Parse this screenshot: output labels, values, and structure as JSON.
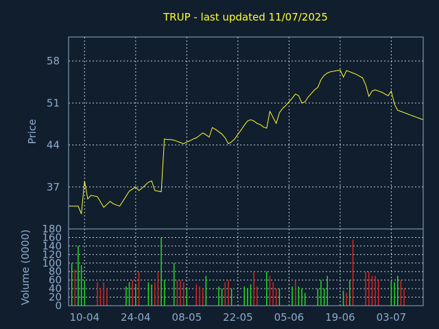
{
  "chart_data": [
    {
      "type": "line",
      "title": "TRUP - last updated 11/07/2025",
      "ylabel": "Price",
      "ylim": [
        30,
        62
      ],
      "yticks": [
        37,
        44,
        51,
        58
      ],
      "xticks": [
        {
          "x": 5,
          "label": "10-04"
        },
        {
          "x": 21,
          "label": "24-04"
        },
        {
          "x": 37,
          "label": "08-05"
        },
        {
          "x": 53,
          "label": "22-05"
        },
        {
          "x": 69,
          "label": "05-06"
        },
        {
          "x": 85,
          "label": "19-06"
        },
        {
          "x": 101,
          "label": "03-07"
        }
      ],
      "xlim": [
        0,
        111
      ],
      "grid": true,
      "line_color": "#ffff33",
      "x": [
        0,
        3,
        4,
        5,
        6,
        7,
        9,
        11,
        13,
        14,
        16,
        19,
        21,
        22,
        23,
        25,
        26,
        27,
        28,
        29,
        30,
        31,
        32,
        33,
        34,
        35,
        36,
        37,
        38,
        39,
        40,
        41,
        42,
        43,
        44,
        45,
        46,
        47,
        48,
        49,
        50,
        51,
        52,
        53,
        54,
        55,
        56,
        57,
        58,
        59,
        60,
        61,
        62,
        63,
        64,
        65,
        66,
        67,
        68,
        69,
        70,
        71,
        72,
        73,
        74,
        75,
        76,
        77,
        78,
        79,
        80,
        81,
        82,
        83,
        84,
        85,
        86,
        87,
        88,
        89,
        90,
        91,
        92,
        93,
        94,
        95,
        96,
        97,
        98,
        99,
        100,
        101,
        102,
        103,
        104,
        105,
        106,
        107,
        108,
        109,
        110,
        111
      ],
      "values": [
        33.8,
        33.8,
        32.5,
        38.0,
        35.0,
        35.6,
        35.4,
        33.6,
        34.6,
        34.2,
        33.8,
        36.3,
        37.0,
        36.4,
        36.8,
        37.8,
        38.0,
        36.4,
        36.3,
        36.2,
        45.0,
        44.9,
        44.9,
        44.8,
        44.6,
        44.4,
        44.2,
        44.5,
        44.7,
        45.0,
        45.2,
        45.6,
        46.0,
        45.7,
        45.3,
        46.9,
        46.6,
        46.2,
        45.8,
        45.2,
        44.2,
        44.5,
        45.0,
        45.8,
        46.5,
        47.3,
        48.0,
        48.2,
        48.0,
        47.6,
        47.4,
        47.0,
        46.8,
        49.6,
        48.6,
        47.6,
        49.4,
        50.1,
        50.6,
        51.2,
        51.8,
        52.5,
        52.2,
        51.0,
        51.2,
        52.0,
        52.6,
        53.2,
        53.6,
        54.9,
        55.6,
        56.0,
        56.2,
        56.3,
        56.4,
        56.5,
        55.3,
        56.4,
        56.2,
        56.0,
        55.8,
        55.5,
        55.2,
        54.0,
        52.1,
        53.0,
        53.2,
        53.0,
        52.8,
        52.5,
        52.2,
        53.0,
        50.8,
        49.8,
        49.6,
        49.4,
        49.2,
        49.0,
        48.8,
        48.6,
        48.4,
        48.2
      ]
    },
    {
      "type": "bar",
      "ylabel": "Volume (0000)",
      "ylim": [
        0,
        180
      ],
      "yticks": [
        0,
        20,
        40,
        60,
        80,
        100,
        120,
        140,
        160,
        180
      ],
      "up_color": "#22dd22",
      "down_color": "#dd2222",
      "x": [
        1,
        2,
        3,
        4,
        5,
        6,
        7,
        8,
        9,
        10,
        11,
        12,
        13,
        14,
        15,
        16,
        17,
        18,
        19,
        20,
        21,
        22,
        23,
        24,
        25,
        26,
        27,
        28,
        29,
        30,
        31,
        32,
        33,
        34,
        35,
        36,
        37,
        38,
        39,
        40,
        41,
        42,
        43,
        44,
        45,
        46,
        47,
        48,
        49,
        50,
        51,
        52,
        53,
        54,
        55,
        56,
        57,
        58,
        59,
        60,
        61,
        62,
        63,
        64,
        65,
        66,
        67,
        68,
        69,
        70,
        71,
        72,
        73,
        74,
        75,
        76,
        77,
        78,
        79,
        80,
        81,
        82,
        83,
        84,
        85,
        86,
        87,
        88,
        89,
        90,
        91,
        92,
        93,
        94,
        95,
        96,
        97,
        98,
        99,
        100,
        101,
        102,
        103,
        104,
        105,
        106,
        107,
        108,
        109
      ],
      "values": [
        100,
        85,
        140,
        95,
        60,
        0,
        0,
        0,
        55,
        40,
        55,
        40,
        0,
        0,
        0,
        0,
        0,
        45,
        55,
        60,
        50,
        80,
        0,
        0,
        55,
        50,
        55,
        80,
        160,
        60,
        0,
        0,
        100,
        60,
        60,
        55,
        40,
        0,
        0,
        50,
        45,
        40,
        70,
        0,
        0,
        0,
        45,
        40,
        55,
        60,
        40,
        0,
        0,
        0,
        45,
        40,
        50,
        80,
        45,
        0,
        0,
        80,
        70,
        55,
        40,
        40,
        0,
        0,
        0,
        45,
        60,
        45,
        40,
        30,
        0,
        0,
        0,
        40,
        60,
        40,
        70,
        0,
        0,
        0,
        0,
        35,
        30,
        60,
        155,
        0,
        0,
        0,
        80,
        80,
        70,
        70,
        60,
        0,
        0,
        0,
        60,
        55,
        70,
        60,
        40,
        0,
        0,
        0,
        0
      ],
      "up": [
        1,
        0,
        1,
        1,
        1,
        0,
        0,
        0,
        0,
        0,
        0,
        0,
        0,
        0,
        0,
        0,
        0,
        1,
        1,
        0,
        1,
        0,
        0,
        0,
        1,
        1,
        0,
        0,
        1,
        1,
        0,
        0,
        1,
        0,
        0,
        0,
        1,
        0,
        0,
        0,
        0,
        0,
        1,
        0,
        0,
        0,
        1,
        1,
        0,
        0,
        1,
        0,
        0,
        0,
        1,
        1,
        1,
        0,
        0,
        0,
        0,
        1,
        0,
        0,
        0,
        1,
        0,
        0,
        0,
        1,
        0,
        1,
        1,
        1,
        0,
        0,
        0,
        1,
        1,
        1,
        1,
        0,
        0,
        0,
        0,
        1,
        0,
        1,
        0,
        0,
        0,
        0,
        0,
        0,
        0,
        0,
        0,
        0,
        0,
        0,
        1,
        1,
        1,
        0,
        0,
        0,
        0,
        0,
        0
      ]
    }
  ]
}
